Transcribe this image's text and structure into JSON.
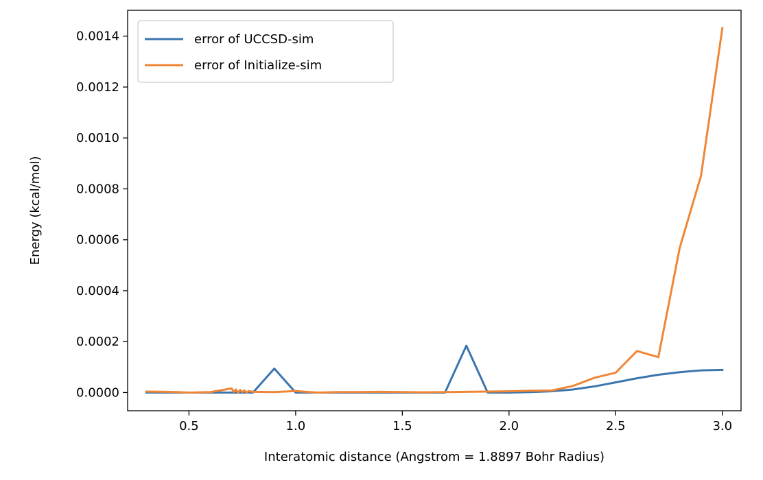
{
  "chart_data": {
    "type": "line",
    "xlabel": "Interatomic distance (Angstrom = 1.8897 Bohr Radius)",
    "ylabel": "Energy (kcal/mol)",
    "xlim": [
      0.2125,
      3.0875
    ],
    "ylim": [
      -7.15e-05,
      0.0015015
    ],
    "xticks": [
      0.5,
      1.0,
      1.5,
      2.0,
      2.5,
      3.0
    ],
    "xtick_labels": [
      "0.5",
      "1.0",
      "1.5",
      "2.0",
      "2.5",
      "3.0"
    ],
    "yticks": [
      0.0,
      0.0002,
      0.0004,
      0.0006,
      0.0008,
      0.001,
      0.0012,
      0.0014
    ],
    "ytick_labels": [
      "0.0000",
      "0.0002",
      "0.0004",
      "0.0006",
      "0.0008",
      "0.0010",
      "0.0012",
      "0.0014"
    ],
    "grid": false,
    "legend_position": "top-left",
    "series": [
      {
        "name": "error of UCCSD-sim",
        "color": "#3a75ae",
        "x": [
          0.3,
          0.4,
          0.5,
          0.6,
          0.7,
          0.8,
          0.9,
          1.0,
          1.1,
          1.2,
          1.3,
          1.4,
          1.5,
          1.6,
          1.7,
          1.8,
          1.9,
          2.0,
          2.1,
          2.2,
          2.3,
          2.4,
          2.5,
          2.6,
          2.7,
          2.8,
          2.9,
          3.0
        ],
        "y": [
          0.0,
          0.0,
          0.0,
          0.0,
          0.0,
          0.0,
          9.4e-05,
          0.0,
          0.0,
          0.0,
          0.0,
          0.0,
          0.0,
          0.0,
          0.0,
          0.000184,
          0.0,
          0.0,
          2e-06,
          5e-06,
          1.2e-05,
          2.4e-05,
          4e-05,
          5.6e-05,
          7e-05,
          8e-05,
          8.7e-05,
          8.9e-05
        ]
      },
      {
        "name": "error of Initialize-sim",
        "color": "#ef8636",
        "x": [
          0.3,
          0.4,
          0.5,
          0.6,
          0.7,
          0.71,
          0.72,
          0.73,
          0.74,
          0.75,
          0.76,
          0.77,
          0.78,
          0.8,
          0.9,
          1.0,
          1.1,
          1.2,
          1.3,
          1.4,
          1.5,
          1.6,
          1.7,
          1.8,
          1.9,
          2.0,
          2.1,
          2.2,
          2.3,
          2.4,
          2.5,
          2.6,
          2.7,
          2.8,
          2.9,
          3.0
        ],
        "y": [
          4e-06,
          3e-06,
          0.0,
          2e-06,
          1.6e-05,
          3e-06,
          1.2e-05,
          0.0,
          1e-05,
          2e-06,
          8e-06,
          0.0,
          6e-06,
          3e-06,
          2e-06,
          6e-06,
          0.0,
          2e-06,
          2e-06,
          3e-06,
          2e-06,
          1e-06,
          2e-06,
          3e-06,
          4e-06,
          5e-06,
          7e-06,
          8e-06,
          2.6e-05,
          5.8e-05,
          7.8e-05,
          0.000163,
          0.000139,
          0.000568,
          0.000852,
          0.001432
        ]
      }
    ]
  }
}
